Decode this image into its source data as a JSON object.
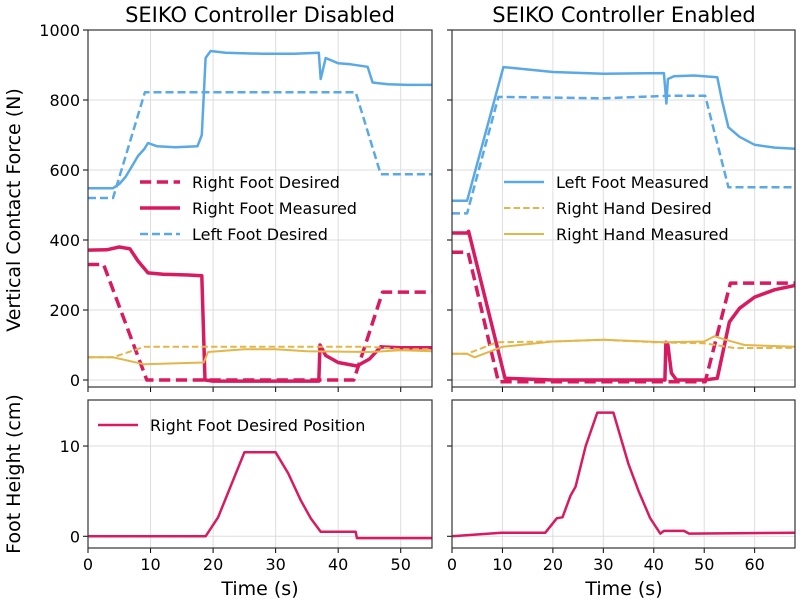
{
  "colors": {
    "left_foot": "#5aa9e6",
    "right_foot": "#d81b60",
    "right_hand": "#e3b64a"
  },
  "labels": {
    "ylabel_force": "Vertical Contact Force (N)",
    "ylabel_height": "Foot Height (cm)",
    "xlabel": "Time (s)"
  },
  "chart_data": [
    {
      "type": "line",
      "title": "SEIKO Controller Disabled",
      "xlim": [
        0,
        55
      ],
      "ylim": [
        -20,
        1000
      ],
      "xticks": [
        0,
        10,
        20,
        30,
        40,
        50
      ],
      "yticks": [
        0,
        200,
        400,
        600,
        800,
        1000
      ],
      "grid": true,
      "legend": {
        "placement": "center-left",
        "entries": [
          "Right Foot Desired",
          "Right Foot Measured",
          "Left Foot Desired"
        ]
      },
      "series": [
        {
          "name": "Left Foot Desired",
          "key": "left_foot",
          "style": "dashed",
          "width": 2.5,
          "x": [
            0,
            4,
            9.1,
            42.8,
            46.8,
            55
          ],
          "y": [
            520,
            520,
            822,
            822,
            588,
            588
          ]
        },
        {
          "name": "Left Foot Measured",
          "key": "left_foot",
          "style": "solid",
          "width": 2.5,
          "x": [
            0,
            4,
            5,
            6,
            7,
            8,
            9,
            9.6,
            11,
            14,
            17.5,
            18.2,
            18.8,
            19.6,
            22,
            28,
            33,
            36.9,
            37.2,
            38,
            40,
            42,
            44.7,
            45.5,
            48,
            51,
            55
          ],
          "y": [
            548,
            548,
            560,
            580,
            610,
            640,
            660,
            677,
            668,
            665,
            668,
            700,
            920,
            940,
            935,
            932,
            932,
            935,
            860,
            920,
            905,
            902,
            895,
            850,
            845,
            843,
            843
          ]
        },
        {
          "name": "Right Foot Desired",
          "key": "right_foot",
          "style": "dashed",
          "width": 3.5,
          "x": [
            0,
            2.5,
            9.4,
            42.5,
            47.1,
            55
          ],
          "y": [
            330,
            330,
            0,
            0,
            251,
            251
          ]
        },
        {
          "name": "Right Foot Measured",
          "key": "right_foot",
          "style": "solid",
          "width": 3.5,
          "x": [
            0,
            3,
            5,
            6.7,
            8,
            9.6,
            12,
            16,
            18.2,
            18.7,
            20,
            30,
            36.9,
            37.1,
            38,
            40,
            43,
            45,
            46.8,
            50,
            55
          ],
          "y": [
            371,
            372,
            380,
            375,
            340,
            306,
            302,
            300,
            298,
            0,
            -3,
            -3,
            -3,
            100,
            70,
            50,
            40,
            60,
            95,
            92,
            92
          ]
        },
        {
          "name": "Right Hand Desired",
          "key": "right_hand",
          "style": "dashed",
          "width": 2,
          "x": [
            0,
            4,
            9,
            45,
            50,
            55
          ],
          "y": [
            65,
            65,
            95,
            95,
            88,
            88
          ]
        },
        {
          "name": "Right Hand Measured",
          "key": "right_hand",
          "style": "solid",
          "width": 2,
          "x": [
            0,
            4,
            9,
            18.5,
            19.2,
            25,
            30,
            35,
            45,
            50,
            55
          ],
          "y": [
            65,
            65,
            45,
            50,
            80,
            88,
            88,
            82,
            80,
            85,
            82
          ]
        }
      ]
    },
    {
      "type": "line",
      "title": "SEIKO Controller Enabled",
      "xlim": [
        0,
        68
      ],
      "ylim": [
        -20,
        1000
      ],
      "xticks": [
        0,
        10,
        20,
        30,
        40,
        50,
        60
      ],
      "yticks": [
        0,
        200,
        400,
        600,
        800,
        1000
      ],
      "grid": true,
      "legend": {
        "placement": "center-left",
        "entries": [
          "Left Foot Measured",
          "Right Hand Desired",
          "Right Hand Measured"
        ]
      },
      "series": [
        {
          "name": "Left Foot Desired",
          "key": "left_foot",
          "style": "dashed",
          "width": 2.5,
          "x": [
            0,
            3,
            9.2,
            30,
            42.6,
            50.2,
            54.8,
            68
          ],
          "y": [
            476,
            476,
            809,
            805,
            812,
            812,
            551,
            551
          ]
        },
        {
          "name": "Left Foot Measured",
          "key": "left_foot",
          "style": "solid",
          "width": 2.5,
          "x": [
            0,
            3,
            10.2,
            20,
            30,
            42,
            42.5,
            42.8,
            44,
            48,
            52.6,
            53.5,
            54.8,
            57,
            60,
            64,
            68
          ],
          "y": [
            512,
            512,
            894,
            880,
            875,
            877,
            790,
            860,
            868,
            870,
            865,
            800,
            722,
            695,
            672,
            664,
            661
          ]
        },
        {
          "name": "Right Foot Desired",
          "key": "right_foot",
          "style": "dashed",
          "width": 3.5,
          "x": [
            0,
            3.2,
            9.2,
            50.2,
            55.2,
            68
          ],
          "y": [
            365,
            365,
            -5,
            -5,
            277,
            277
          ]
        },
        {
          "name": "Right Foot Measured",
          "key": "right_foot",
          "style": "solid",
          "width": 3.5,
          "x": [
            0,
            3,
            3.3,
            10.5,
            20,
            42.2,
            42.4,
            42.8,
            43.5,
            44.5,
            50,
            52.6,
            55,
            57,
            60,
            64,
            68
          ],
          "y": [
            420,
            420,
            425,
            5,
            0,
            0,
            108,
            100,
            20,
            0,
            0,
            5,
            166,
            205,
            237,
            258,
            270
          ]
        },
        {
          "name": "Right Hand Desired",
          "key": "right_hand",
          "style": "dashed",
          "width": 2,
          "x": [
            0,
            3,
            9,
            20,
            30,
            40,
            50,
            56,
            68
          ],
          "y": [
            75,
            75,
            108,
            110,
            115,
            108,
            105,
            91,
            92
          ]
        },
        {
          "name": "Right Hand Measured",
          "key": "right_hand",
          "style": "solid",
          "width": 2,
          "x": [
            0,
            3,
            4.5,
            10,
            20,
            30,
            42,
            50,
            52,
            55,
            58,
            68
          ],
          "y": [
            75,
            75,
            65,
            95,
            110,
            115,
            108,
            110,
            125,
            112,
            100,
            95
          ]
        }
      ]
    },
    {
      "type": "line",
      "xlim": [
        0,
        55
      ],
      "ylim": [
        -1.3,
        15.1
      ],
      "xticks": [
        0,
        10,
        20,
        30,
        40,
        50
      ],
      "yticks": [
        0,
        10
      ],
      "grid": true,
      "legend": {
        "placement": "upper-left",
        "entries": [
          "Right Foot Desired Position"
        ]
      },
      "series": [
        {
          "name": "Right Foot Desired Position",
          "key": "right_foot",
          "style": "solid",
          "width": 2.5,
          "x": [
            0,
            18.8,
            20.8,
            25,
            30,
            32,
            34,
            35.6,
            37.2,
            42.8,
            43,
            55
          ],
          "y": [
            0,
            0,
            2.1,
            9.3,
            9.3,
            7,
            4,
            2,
            0.5,
            0.5,
            -0.2,
            -0.2
          ]
        }
      ]
    },
    {
      "type": "line",
      "xlim": [
        0,
        68
      ],
      "ylim": [
        -1.3,
        15.1
      ],
      "xticks": [
        0,
        10,
        20,
        30,
        40,
        50,
        60
      ],
      "yticks": [
        0,
        10
      ],
      "grid": true,
      "series": [
        {
          "name": "Right Foot Desired Position",
          "key": "right_foot",
          "style": "solid",
          "width": 2.5,
          "x": [
            0,
            9.8,
            18.5,
            20.8,
            21.9,
            23.5,
            24.5,
            26.5,
            28.8,
            32,
            35,
            37,
            39.3,
            41.3,
            42,
            46,
            47,
            68
          ],
          "y": [
            0,
            0.4,
            0.4,
            2,
            2.1,
            4.5,
            5.5,
            10,
            13.7,
            13.7,
            8,
            5,
            2,
            0.3,
            0.6,
            0.6,
            0.3,
            0.4
          ]
        }
      ]
    }
  ]
}
